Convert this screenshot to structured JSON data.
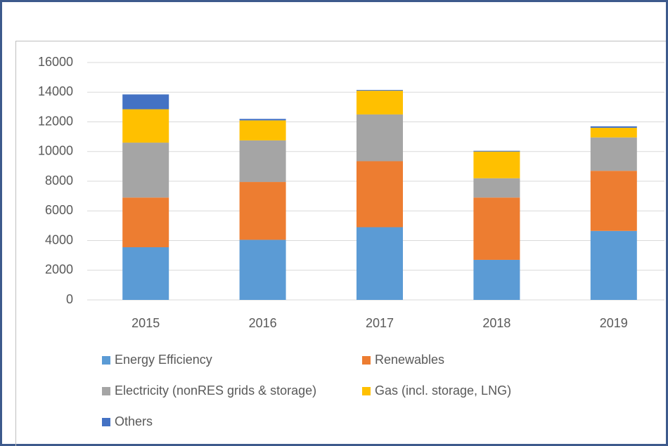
{
  "chart_data": {
    "type": "stacked-bar",
    "categories": [
      "2015",
      "2016",
      "2017",
      "2018",
      "2019"
    ],
    "series": [
      {
        "name": "Energy Efficiency",
        "color": "#5b9bd5",
        "values": [
          3550,
          4050,
          4900,
          2700,
          4650
        ]
      },
      {
        "name": "Renewables",
        "color": "#ed7d31",
        "values": [
          3350,
          3900,
          4450,
          4200,
          4050
        ]
      },
      {
        "name": "Electricity (nonRES grids & storage)",
        "color": "#a5a5a5",
        "values": [
          3700,
          2800,
          3150,
          1300,
          2250
        ]
      },
      {
        "name": "Gas (incl. storage, LNG)",
        "color": "#ffc000",
        "values": [
          2250,
          1350,
          1600,
          1800,
          650
        ]
      },
      {
        "name": "Others",
        "color": "#4472c4",
        "values": [
          1000,
          100,
          50,
          50,
          100
        ]
      }
    ],
    "ylim": [
      0,
      16000
    ],
    "yticks": [
      0,
      2000,
      4000,
      6000,
      8000,
      10000,
      12000,
      14000,
      16000
    ],
    "grid": true
  }
}
